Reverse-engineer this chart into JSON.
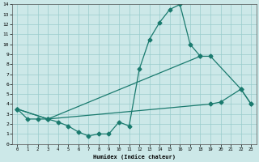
{
  "xlabel": "Humidex (Indice chaleur)",
  "background_color": "#cce8e8",
  "grid_color": "#99cccc",
  "line_color": "#1a7a6e",
  "xlim": [
    -0.5,
    23.5
  ],
  "ylim": [
    0,
    14
  ],
  "xticks": [
    0,
    1,
    2,
    3,
    4,
    5,
    6,
    7,
    8,
    9,
    10,
    11,
    12,
    13,
    14,
    15,
    16,
    17,
    18,
    19,
    20,
    21,
    22,
    23
  ],
  "yticks": [
    0,
    1,
    2,
    3,
    4,
    5,
    6,
    7,
    8,
    9,
    10,
    11,
    12,
    13,
    14
  ],
  "curve1_x": [
    0,
    1,
    2,
    3,
    4,
    5,
    6,
    7,
    8,
    9,
    10,
    11,
    12,
    13,
    14,
    15,
    16,
    17,
    18
  ],
  "curve1_y": [
    3.5,
    2.5,
    2.5,
    2.5,
    2.2,
    1.8,
    1.2,
    0.8,
    1.0,
    1.0,
    2.2,
    1.8,
    7.5,
    10.5,
    12.2,
    13.5,
    14.0,
    10.0,
    8.8
  ],
  "curve2_x": [
    0,
    3,
    18,
    19,
    22,
    23
  ],
  "curve2_y": [
    3.5,
    2.5,
    8.8,
    8.8,
    5.5,
    4.0
  ],
  "curve3_x": [
    0,
    3,
    19,
    20,
    22,
    23
  ],
  "curve3_y": [
    3.5,
    2.5,
    4.0,
    4.2,
    5.5,
    4.0
  ]
}
